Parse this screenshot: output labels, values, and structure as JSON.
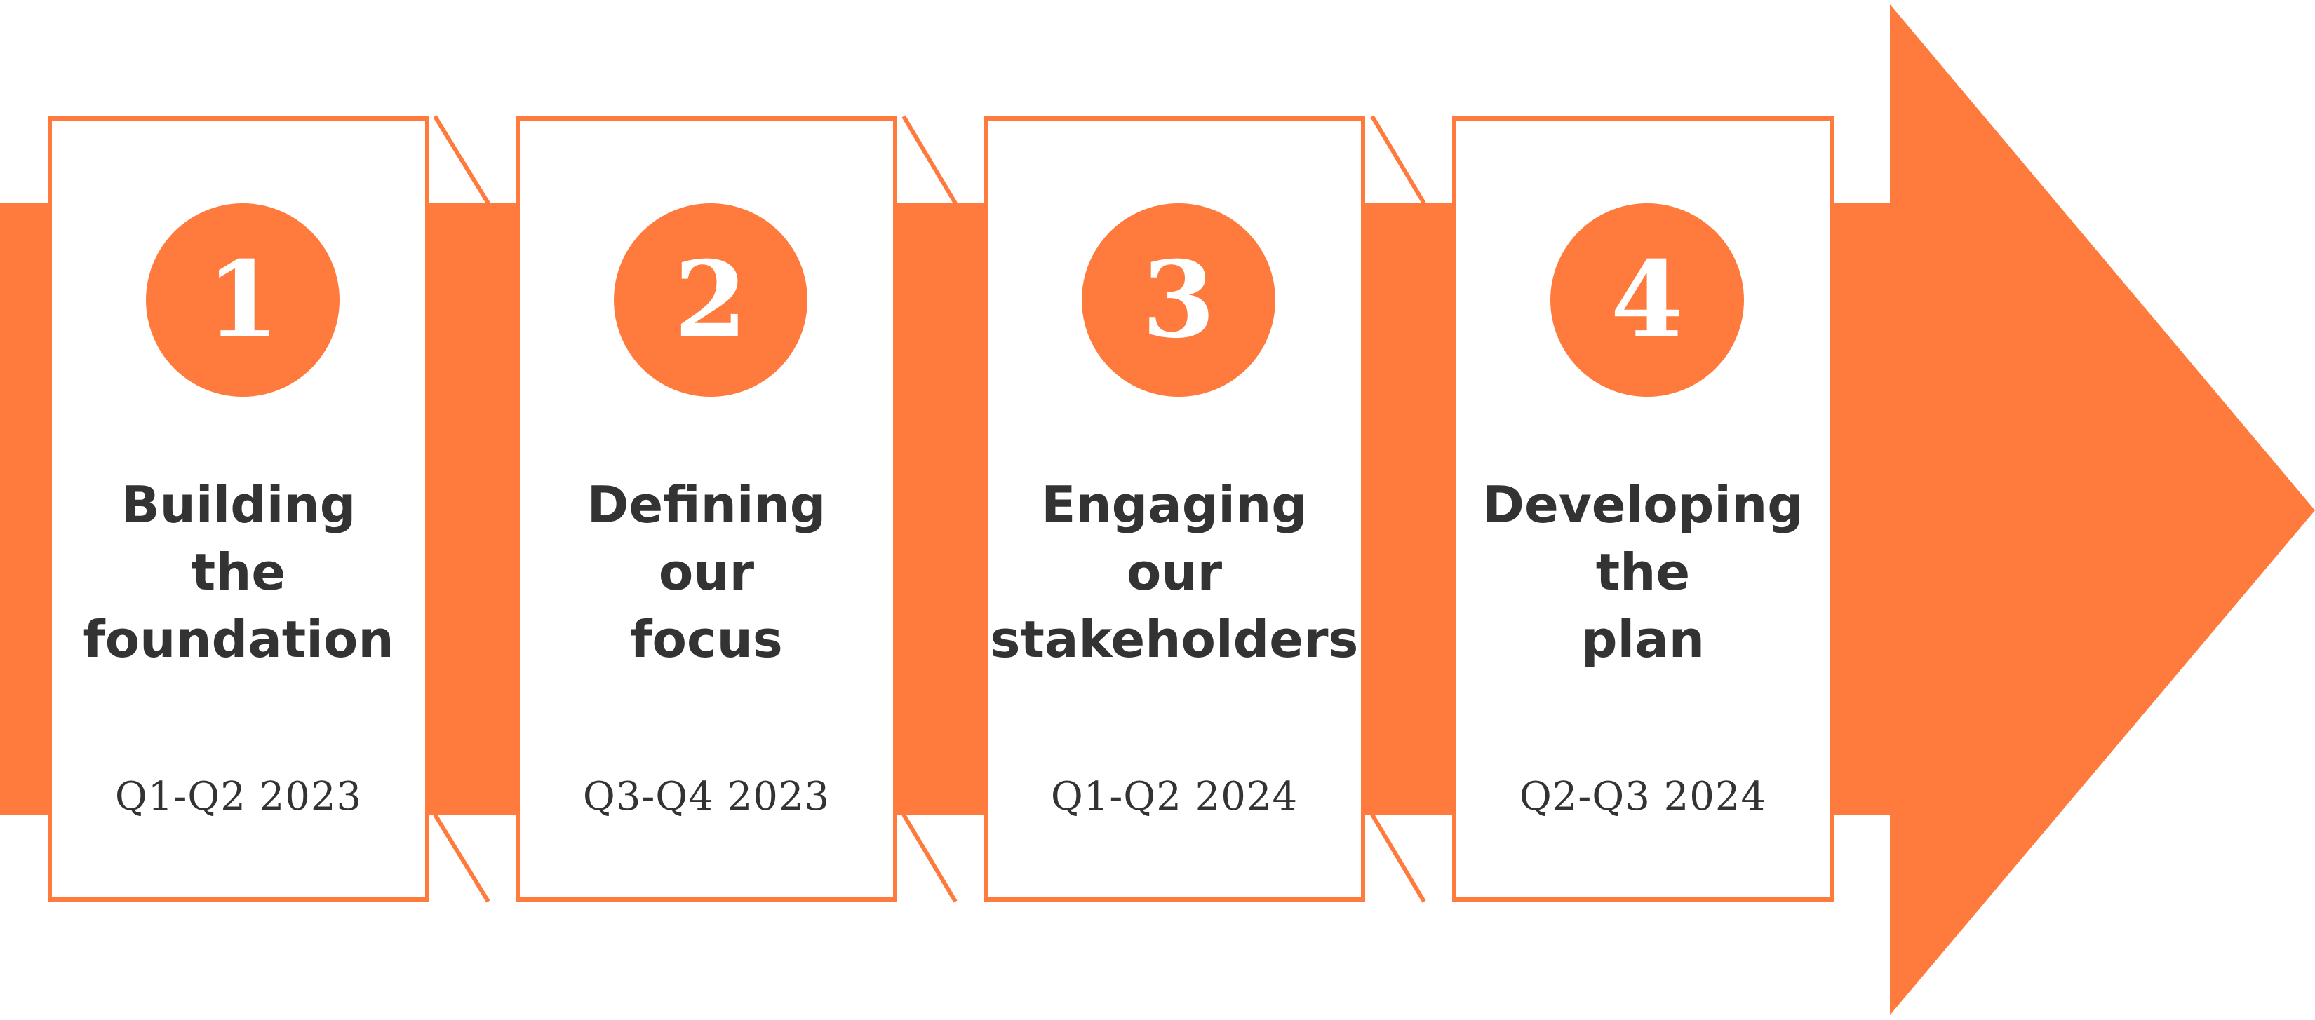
{
  "diagram": {
    "accent_color": "#ff7a3d",
    "text_color": "#333333",
    "background_color": "#ffffff",
    "steps": [
      {
        "number": "1",
        "title_lines": [
          "Building",
          "the",
          "foundation"
        ],
        "date": "Q1-Q2 2023"
      },
      {
        "number": "2",
        "title_lines": [
          "Defining",
          "our",
          "focus"
        ],
        "date": "Q3-Q4 2023"
      },
      {
        "number": "3",
        "title_lines": [
          "Engaging",
          "our",
          "stakeholders"
        ],
        "date": "Q1-Q2 2024"
      },
      {
        "number": "4",
        "title_lines": [
          "Developing",
          "the",
          "plan"
        ],
        "date": "Q2-Q3 2024"
      }
    ]
  }
}
